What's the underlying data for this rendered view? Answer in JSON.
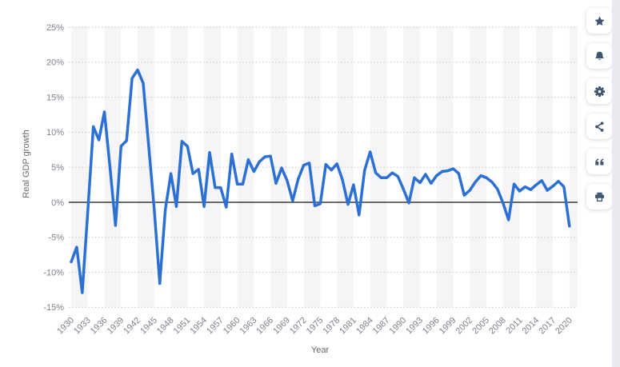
{
  "chart_data": {
    "type": "line",
    "title": "",
    "xlabel": "Year",
    "ylabel": "Real GDP growth",
    "unit": "percent",
    "x": [
      1930,
      1931,
      1932,
      1933,
      1934,
      1935,
      1936,
      1937,
      1938,
      1939,
      1940,
      1941,
      1942,
      1943,
      1944,
      1945,
      1946,
      1947,
      1948,
      1949,
      1950,
      1951,
      1952,
      1953,
      1954,
      1955,
      1956,
      1957,
      1958,
      1959,
      1960,
      1961,
      1962,
      1963,
      1964,
      1965,
      1966,
      1967,
      1968,
      1969,
      1970,
      1971,
      1972,
      1973,
      1974,
      1975,
      1976,
      1977,
      1978,
      1979,
      1980,
      1981,
      1982,
      1983,
      1984,
      1985,
      1986,
      1987,
      1988,
      1989,
      1990,
      1991,
      1992,
      1993,
      1994,
      1995,
      1996,
      1997,
      1998,
      1999,
      2000,
      2001,
      2002,
      2003,
      2004,
      2005,
      2006,
      2007,
      2008,
      2009,
      2010,
      2011,
      2012,
      2013,
      2014,
      2015,
      2016,
      2017,
      2018,
      2019,
      2020
    ],
    "series": [
      {
        "name": "Real GDP growth",
        "values": [
          -8.5,
          -6.4,
          -12.9,
          -1.2,
          10.8,
          8.9,
          12.9,
          5.1,
          -3.3,
          8.0,
          8.8,
          17.7,
          18.9,
          17.0,
          8.0,
          -1.0,
          -11.6,
          -1.1,
          4.1,
          -0.6,
          8.7,
          8.0,
          4.1,
          4.7,
          -0.6,
          7.1,
          2.1,
          2.1,
          -0.7,
          6.9,
          2.6,
          2.6,
          6.1,
          4.4,
          5.8,
          6.5,
          6.6,
          2.7,
          4.9,
          3.1,
          0.2,
          3.3,
          5.3,
          5.6,
          -0.5,
          -0.2,
          5.4,
          4.6,
          5.5,
          3.2,
          -0.3,
          2.5,
          -1.8,
          4.6,
          7.2,
          4.2,
          3.5,
          3.5,
          4.2,
          3.7,
          1.9,
          -0.1,
          3.5,
          2.8,
          4.0,
          2.7,
          3.8,
          4.4,
          4.5,
          4.8,
          4.1,
          1.0,
          1.7,
          2.9,
          3.8,
          3.5,
          2.9,
          1.9,
          -0.1,
          -2.5,
          2.6,
          1.6,
          2.2,
          1.8,
          2.5,
          3.1,
          1.7,
          2.3,
          3.0,
          2.2,
          -3.4
        ]
      }
    ],
    "ylim": [
      -15,
      25
    ],
    "y_ticks": [
      25,
      20,
      15,
      10,
      5,
      0,
      -5,
      -10,
      -15
    ],
    "y_tick_labels": [
      "25%",
      "20%",
      "15%",
      "10%",
      "5%",
      "0%",
      "-5%",
      "-10%",
      "-15%"
    ],
    "x_tick_labels": [
      "1930",
      "1933",
      "1936",
      "1939",
      "1942",
      "1945",
      "1948",
      "1951",
      "1954",
      "1957",
      "1960",
      "1963",
      "1966",
      "1969",
      "1972",
      "1975",
      "1978",
      "1981",
      "1984",
      "1987",
      "1990",
      "1993",
      "1996",
      "1999",
      "2002",
      "2005",
      "2008",
      "2011",
      "2014",
      "2017",
      "2020"
    ],
    "x_tick_rotation_deg": -45,
    "grid": "dotted horizontal lines at 5% steps",
    "zero_line": true,
    "plot_bands": "alternating vertical 3-year stripes",
    "legend": "none"
  },
  "colors": {
    "line": "#2c70d4",
    "band": "#f5f5f7",
    "grid": "#c9c9c9",
    "zero_line": "#141414",
    "tick_label": "#7e828c",
    "axis_title": "#66686d",
    "icon": "#3e5672",
    "button_bg": "#ffffff",
    "edge_strip": "#e8eaef",
    "background": "#ffffff"
  },
  "toolbar": {
    "buttons": [
      {
        "id": "favorite",
        "icon": "star-icon"
      },
      {
        "id": "notifications",
        "icon": "bell-icon"
      },
      {
        "id": "settings",
        "icon": "gear-icon"
      },
      {
        "id": "share",
        "icon": "share-icon"
      },
      {
        "id": "cite",
        "icon": "quote-icon"
      },
      {
        "id": "print",
        "icon": "printer-icon"
      }
    ]
  }
}
